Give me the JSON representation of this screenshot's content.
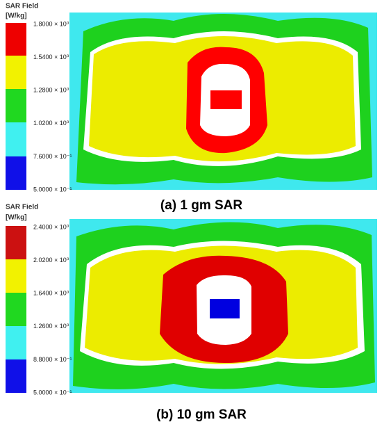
{
  "panels": [
    {
      "colorbar": {
        "title": "SAR Field",
        "unit": "[W/kg]",
        "ticks": [
          "1.8000 × 10⁰",
          "1.5400 × 10⁰",
          "1.2800 × 10⁰",
          "1.0200 × 10⁰",
          "7.6000 × 10⁻¹",
          "5.0000 × 10⁻¹"
        ]
      },
      "caption": "(a) 1 gm SAR"
    },
    {
      "colorbar": {
        "title": "SAR Field",
        "unit": "[W/kg]",
        "ticks": [
          "2.4000 × 10⁰",
          "2.0200 × 10⁰",
          "1.6400 × 10⁰",
          "1.2600 × 10⁰",
          "8.8000 × 10⁻¹",
          "5.0000 × 10⁻¹"
        ]
      },
      "caption": "(b) 10 gm SAR"
    }
  ]
}
